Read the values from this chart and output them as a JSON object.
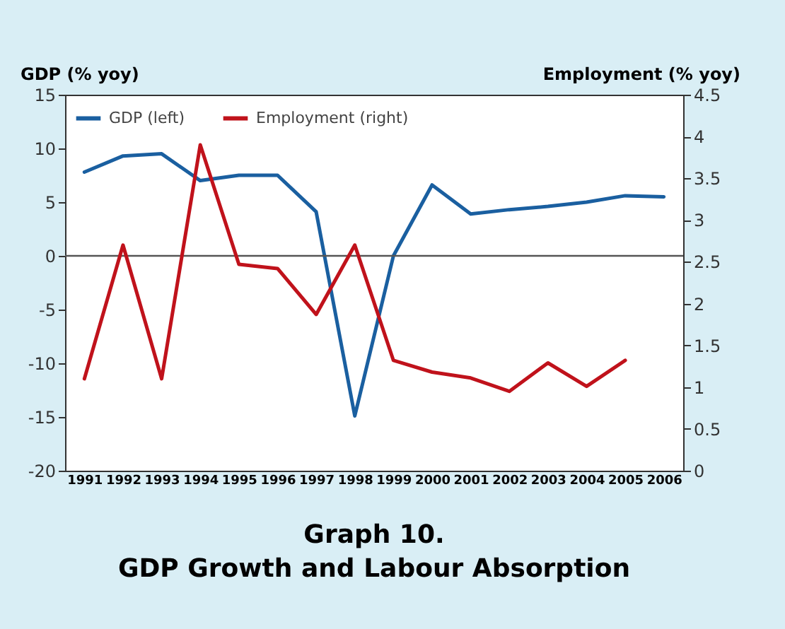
{
  "chart_data": {
    "type": "line",
    "title": "Graph 10.",
    "subtitle": "GDP Growth and Labour Absorption",
    "ylabel": "GDP (% yoy)",
    "y2label": "Employment (% yoy)",
    "categories": [
      "1991",
      "1992",
      "1993",
      "1994",
      "1995",
      "1996",
      "1997",
      "1998",
      "1999",
      "2000",
      "2001",
      "2002",
      "2003",
      "2004",
      "2005",
      "2006"
    ],
    "series": [
      {
        "name": "GDP (left)",
        "color": "#1a5fa0",
        "values": [
          7.8,
          9.3,
          9.5,
          7.0,
          7.5,
          7.5,
          4.1,
          -14.9,
          0,
          6.6,
          3.9,
          4.3,
          4.6,
          5.0,
          5.6,
          5.5
        ]
      },
      {
        "name": "Employment (right)",
        "color": "#c0121b",
        "axis": "y2",
        "values": [
          1.1,
          2.7,
          1.1,
          3.9,
          2.47,
          2.42,
          1.87,
          2.7,
          1.32,
          1.18,
          1.11,
          0.95,
          1.29,
          1.01,
          1.32,
          null
        ]
      }
    ],
    "ylim": [
      -20,
      15
    ],
    "yticks": [
      -20,
      -15,
      -10,
      -5,
      0,
      5,
      10,
      15
    ],
    "y2lim": [
      0,
      4.5
    ],
    "y2ticks": [
      0,
      0.5,
      1,
      1.5,
      2,
      2.5,
      3,
      3.5,
      4,
      4.5
    ],
    "ref_lines": [
      {
        "axis": "y",
        "value": 0,
        "color": "#555555"
      }
    ],
    "grid": false,
    "legend": "top left"
  }
}
